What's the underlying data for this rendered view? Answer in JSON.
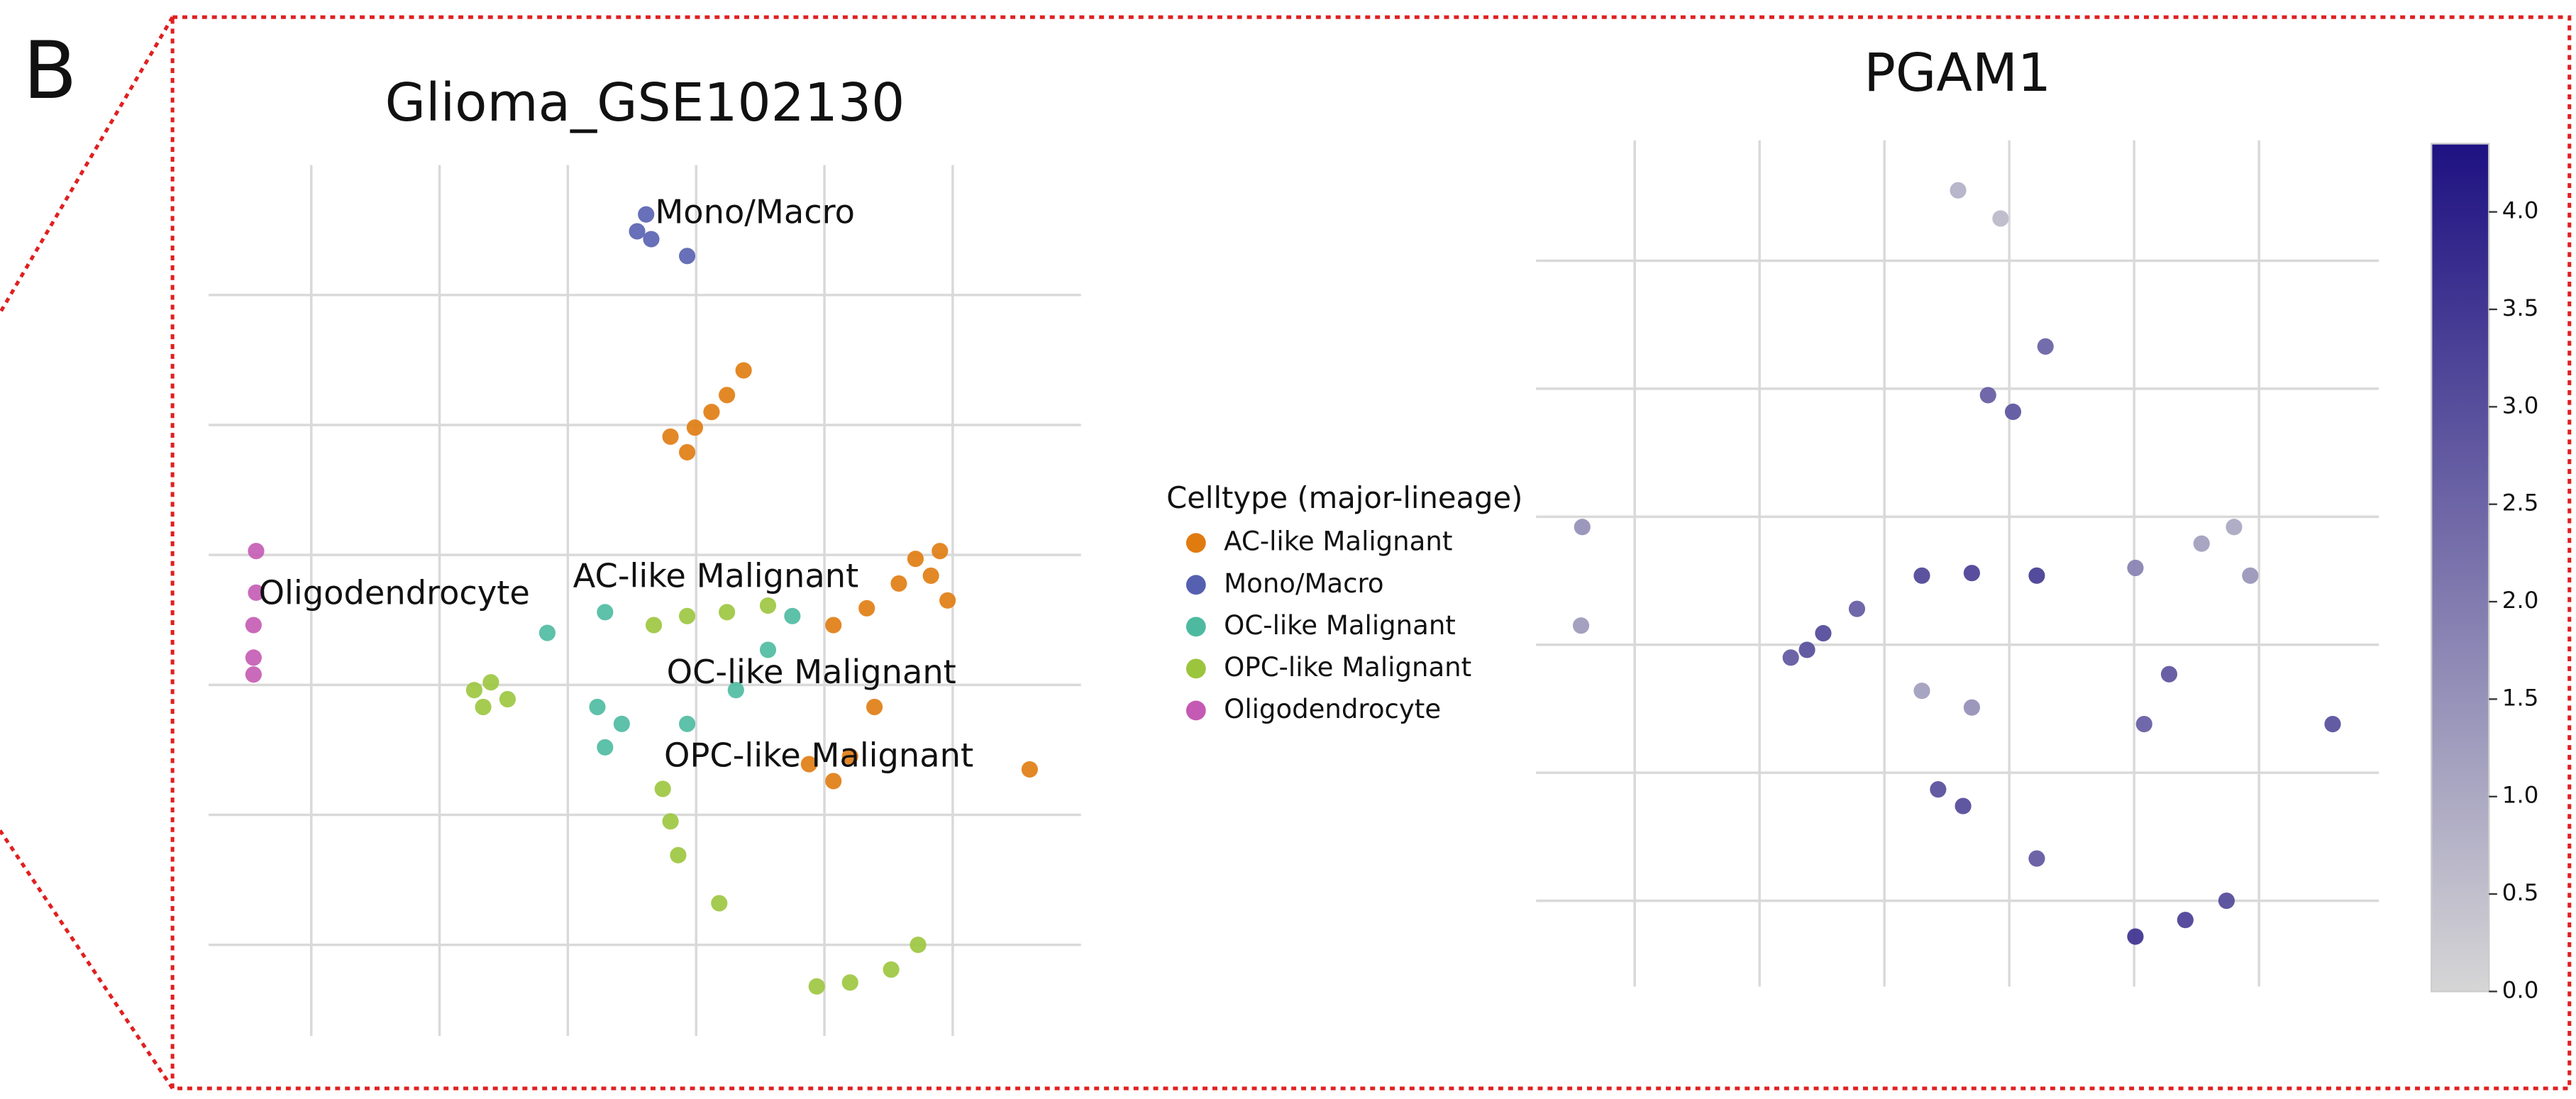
{
  "panel_label": "B",
  "chart_data": [
    {
      "type": "scatter",
      "title": "Glioma_GSE102130",
      "legend_title": "Celltype (major-lineage)",
      "xlim": [
        -0.8,
        6.0
      ],
      "ylim": [
        -0.7,
        6.0
      ],
      "xticks": [
        0,
        1,
        2,
        3,
        4,
        5
      ],
      "yticks": [
        0,
        1,
        2,
        3,
        4,
        5
      ],
      "grid": true,
      "series": [
        {
          "name": "AC-like Malignant",
          "color": "#e07b10",
          "x": [
            2.8,
            2.99,
            3.12,
            3.24,
            3.37,
            2.93,
            4.71,
            4.83,
            4.96,
            4.58,
            4.33,
            4.07,
            4.9,
            4.07,
            4.2,
            4.39,
            3.88,
            5.6
          ],
          "y": [
            3.91,
            3.98,
            4.1,
            4.23,
            4.42,
            3.79,
            2.97,
            2.84,
            2.65,
            2.78,
            2.59,
            2.46,
            3.03,
            1.26,
            1.45,
            1.83,
            1.39,
            1.35
          ]
        },
        {
          "name": "Mono/Macro",
          "color": "#5660b0",
          "x": [
            2.54,
            2.61,
            2.65,
            2.93
          ],
          "y": [
            5.49,
            5.62,
            5.43,
            5.3
          ]
        },
        {
          "name": "OC-like Malignant",
          "color": "#4dbaa0",
          "x": [
            1.84,
            2.29,
            2.42,
            2.29,
            2.93,
            3.31,
            3.56,
            3.75,
            2.23
          ],
          "y": [
            2.4,
            2.56,
            1.7,
            1.52,
            1.7,
            1.96,
            2.27,
            2.53,
            1.83
          ]
        },
        {
          "name": "OPC-like Malignant",
          "color": "#9bc53d",
          "x": [
            1.27,
            1.4,
            1.53,
            1.34,
            2.67,
            2.93,
            3.24,
            3.56,
            2.74,
            2.8,
            2.86,
            3.18,
            3.94,
            4.2,
            4.52,
            4.73
          ],
          "y": [
            1.96,
            2.02,
            1.89,
            1.83,
            2.46,
            2.53,
            2.56,
            2.61,
            1.2,
            0.95,
            0.69,
            0.32,
            -0.32,
            -0.29,
            -0.19,
            0.0
          ]
        },
        {
          "name": "Oligodendrocyte",
          "color": "#c45ab3",
          "x": [
            -0.43,
            -0.43,
            -0.45,
            -0.45,
            -0.45
          ],
          "y": [
            3.03,
            2.71,
            2.46,
            2.21,
            2.08
          ]
        }
      ],
      "annotations": [
        {
          "text": "Mono/Macro",
          "x": 2.68,
          "y": 5.62
        },
        {
          "text": "Oligodendrocyte",
          "x": -0.41,
          "y": 2.69
        },
        {
          "text": "AC-like Malignant",
          "x": 2.04,
          "y": 2.82
        },
        {
          "text": "OC-like Malignant",
          "x": 2.77,
          "y": 2.08
        },
        {
          "text": "OPC-like Malignant",
          "x": 2.75,
          "y": 1.44
        }
      ]
    },
    {
      "type": "scatter",
      "title": "PGAM1",
      "xlim": [
        -0.79,
        5.96
      ],
      "ylim": [
        -0.67,
        5.94
      ],
      "xticks": [
        0,
        1,
        2,
        3,
        4,
        5
      ],
      "yticks": [
        0,
        1,
        2,
        3,
        4,
        5
      ],
      "grid": true,
      "x": [
        2.59,
        2.93,
        2.83,
        3.03,
        3.29,
        -0.42,
        -0.43,
        1.38,
        1.51,
        1.25,
        2.3,
        2.7,
        3.22,
        1.78,
        2.3,
        2.7,
        2.43,
        2.63,
        4.54,
        4.8,
        4.93,
        4.01,
        4.08,
        4.28,
        5.59,
        3.22,
        4.01,
        4.41,
        4.74
      ],
      "y": [
        5.55,
        5.33,
        3.95,
        3.82,
        4.33,
        2.92,
        2.15,
        1.96,
        2.09,
        1.9,
        2.54,
        2.56,
        2.54,
        2.28,
        1.64,
        1.51,
        0.87,
        0.74,
        2.79,
        2.92,
        2.54,
        2.6,
        1.38,
        1.77,
        1.38,
        0.33,
        -0.28,
        -0.15,
        0.0
      ],
      "values": [
        0.8,
        0.6,
        2.6,
        2.8,
        2.5,
        1.5,
        1.3,
        2.9,
        3.0,
        2.7,
        3.1,
        3.2,
        3.3,
        2.6,
        1.2,
        1.5,
        2.9,
        3.0,
        1.2,
        1.0,
        1.4,
        1.8,
        2.6,
        2.8,
        2.9,
        2.7,
        3.5,
        3.2,
        3.0
      ],
      "colorscale": [
        "#d6d6d6",
        "#1e1182"
      ],
      "clim": [
        0,
        4.35
      ],
      "cticks": [
        {
          "value": 0,
          "label": "0.0"
        },
        {
          "value": 0.5,
          "label": "0.5"
        },
        {
          "value": 1,
          "label": "1.0"
        },
        {
          "value": 1.5,
          "label": "1.5"
        },
        {
          "value": 2,
          "label": "2.0"
        },
        {
          "value": 2.5,
          "label": "2.5"
        },
        {
          "value": 3,
          "label": "3.0"
        },
        {
          "value": 3.5,
          "label": "3.5"
        },
        {
          "value": 4,
          "label": "4.0"
        }
      ]
    }
  ]
}
